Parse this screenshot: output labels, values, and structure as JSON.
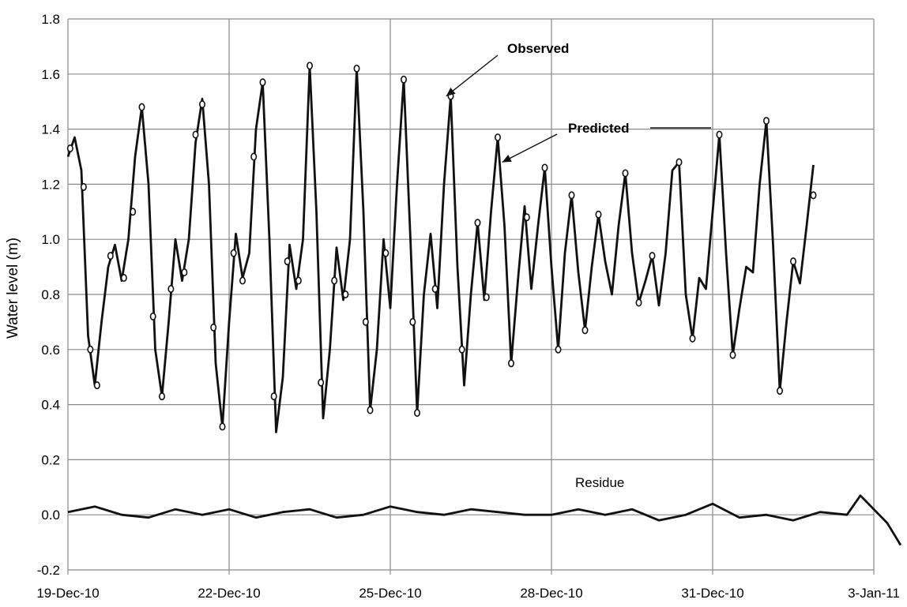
{
  "chart_data": {
    "type": "line",
    "title": "",
    "xlabel": "",
    "ylabel": "Water level (m)",
    "ylim": [
      -0.2,
      1.8
    ],
    "yticks": [
      -0.2,
      0.0,
      0.2,
      0.4,
      0.6,
      0.8,
      1.0,
      1.2,
      1.4,
      1.6,
      1.8
    ],
    "ytick_labels": [
      "-0.2",
      "0.0",
      "0.2",
      "0.4",
      "0.6",
      "0.8",
      "1.0",
      "1.2",
      "1.4",
      "1.6",
      "1.8"
    ],
    "xlim": [
      "2010-12-19",
      "2011-01-03"
    ],
    "xtick_labels": [
      "19-Dec-10",
      "22-Dec-10",
      "25-Dec-10",
      "28-Dec-10",
      "31-Dec-10",
      "3-Jan-11"
    ],
    "grid": true,
    "legend": "none",
    "annotations": [
      {
        "text": "Observed",
        "target_x": "2010-12-26 01:00",
        "target_y": 1.52
      },
      {
        "text": "Predicted",
        "target_x": "2010-12-27 02:00",
        "target_y": 1.28
      },
      {
        "text": "Residue",
        "target_x": "2010-12-29 06:00",
        "target_y": 0.08
      }
    ],
    "series": [
      {
        "name": "Predicted",
        "style": "line",
        "points": [
          [
            "2010-12-19 00:00",
            1.3
          ],
          [
            "2010-12-19 03:00",
            1.37
          ],
          [
            "2010-12-19 06:00",
            1.25
          ],
          [
            "2010-12-19 09:00",
            0.65
          ],
          [
            "2010-12-19 12:00",
            0.47
          ],
          [
            "2010-12-19 15:00",
            0.7
          ],
          [
            "2010-12-19 18:00",
            0.9
          ],
          [
            "2010-12-19 21:00",
            0.98
          ],
          [
            "2010-12-20 00:00",
            0.85
          ],
          [
            "2010-12-20 03:00",
            1.0
          ],
          [
            "2010-12-20 06:00",
            1.3
          ],
          [
            "2010-12-20 09:00",
            1.48
          ],
          [
            "2010-12-20 12:00",
            1.2
          ],
          [
            "2010-12-20 15:00",
            0.6
          ],
          [
            "2010-12-20 18:00",
            0.43
          ],
          [
            "2010-12-20 21:00",
            0.7
          ],
          [
            "2010-12-21 00:00",
            1.0
          ],
          [
            "2010-12-21 03:00",
            0.85
          ],
          [
            "2010-12-21 06:00",
            1.0
          ],
          [
            "2010-12-21 09:00",
            1.35
          ],
          [
            "2010-12-21 12:00",
            1.51
          ],
          [
            "2010-12-21 15:00",
            1.2
          ],
          [
            "2010-12-21 18:00",
            0.55
          ],
          [
            "2010-12-21 21:00",
            0.32
          ],
          [
            "2010-12-22 00:00",
            0.7
          ],
          [
            "2010-12-22 03:00",
            1.02
          ],
          [
            "2010-12-22 06:00",
            0.86
          ],
          [
            "2010-12-22 09:00",
            0.95
          ],
          [
            "2010-12-22 12:00",
            1.4
          ],
          [
            "2010-12-22 15:00",
            1.57
          ],
          [
            "2010-12-22 18:00",
            1.0
          ],
          [
            "2010-12-22 21:00",
            0.3
          ],
          [
            "2010-12-23 00:00",
            0.5
          ],
          [
            "2010-12-23 03:00",
            0.98
          ],
          [
            "2010-12-23 06:00",
            0.82
          ],
          [
            "2010-12-23 09:00",
            1.0
          ],
          [
            "2010-12-23 12:00",
            1.63
          ],
          [
            "2010-12-23 15:00",
            1.1
          ],
          [
            "2010-12-23 18:00",
            0.35
          ],
          [
            "2010-12-23 21:00",
            0.6
          ],
          [
            "2010-12-24 00:00",
            0.97
          ],
          [
            "2010-12-24 03:00",
            0.78
          ],
          [
            "2010-12-24 06:00",
            1.0
          ],
          [
            "2010-12-24 09:00",
            1.62
          ],
          [
            "2010-12-24 12:00",
            1.1
          ],
          [
            "2010-12-24 15:00",
            0.38
          ],
          [
            "2010-12-24 18:00",
            0.6
          ],
          [
            "2010-12-24 21:00",
            1.0
          ],
          [
            "2010-12-25 00:00",
            0.75
          ],
          [
            "2010-12-25 03:00",
            1.2
          ],
          [
            "2010-12-25 06:00",
            1.58
          ],
          [
            "2010-12-25 09:00",
            1.0
          ],
          [
            "2010-12-25 12:00",
            0.37
          ],
          [
            "2010-12-25 15:00",
            0.8
          ],
          [
            "2010-12-25 18:00",
            1.02
          ],
          [
            "2010-12-25 21:00",
            0.75
          ],
          [
            "2010-12-26 00:00",
            1.2
          ],
          [
            "2010-12-26 03:00",
            1.52
          ],
          [
            "2010-12-26 06:00",
            0.9
          ],
          [
            "2010-12-26 09:00",
            0.47
          ],
          [
            "2010-12-26 12:00",
            0.8
          ],
          [
            "2010-12-26 15:00",
            1.06
          ],
          [
            "2010-12-26 18:00",
            0.78
          ],
          [
            "2010-12-26 21:00",
            1.1
          ],
          [
            "2010-12-27 00:00",
            1.37
          ],
          [
            "2010-12-27 03:00",
            1.05
          ],
          [
            "2010-12-27 06:00",
            0.55
          ],
          [
            "2010-12-27 09:00",
            0.85
          ],
          [
            "2010-12-27 12:00",
            1.12
          ],
          [
            "2010-12-27 15:00",
            0.82
          ],
          [
            "2010-12-27 18:00",
            1.05
          ],
          [
            "2010-12-27 21:00",
            1.26
          ],
          [
            "2010-12-28 00:00",
            0.9
          ],
          [
            "2010-12-28 03:00",
            0.6
          ],
          [
            "2010-12-28 06:00",
            0.95
          ],
          [
            "2010-12-28 09:00",
            1.16
          ],
          [
            "2010-12-28 12:00",
            0.88
          ],
          [
            "2010-12-28 15:00",
            0.67
          ],
          [
            "2010-12-28 18:00",
            0.9
          ],
          [
            "2010-12-28 21:00",
            1.09
          ],
          [
            "2010-12-29 00:00",
            0.92
          ],
          [
            "2010-12-29 03:00",
            0.8
          ],
          [
            "2010-12-29 06:00",
            1.05
          ],
          [
            "2010-12-29 09:00",
            1.24
          ],
          [
            "2010-12-29 12:00",
            0.95
          ],
          [
            "2010-12-29 15:00",
            0.77
          ],
          [
            "2010-12-29 18:00",
            0.85
          ],
          [
            "2010-12-29 21:00",
            0.94
          ],
          [
            "2010-12-30 00:00",
            0.76
          ],
          [
            "2010-12-30 03:00",
            0.95
          ],
          [
            "2010-12-30 06:00",
            1.25
          ],
          [
            "2010-12-30 09:00",
            1.28
          ],
          [
            "2010-12-30 12:00",
            0.8
          ],
          [
            "2010-12-30 15:00",
            0.64
          ],
          [
            "2010-12-30 18:00",
            0.86
          ],
          [
            "2010-12-30 21:00",
            0.82
          ],
          [
            "2010-12-31 00:00",
            1.1
          ],
          [
            "2010-12-31 03:00",
            1.38
          ],
          [
            "2010-12-31 06:00",
            0.95
          ],
          [
            "2010-12-31 09:00",
            0.58
          ],
          [
            "2010-12-31 12:00",
            0.75
          ],
          [
            "2010-12-31 15:00",
            0.9
          ],
          [
            "2010-12-31 18:00",
            0.88
          ],
          [
            "2010-12-31 21:00",
            1.2
          ],
          [
            "2011-01-01 00:00",
            1.43
          ],
          [
            "2011-01-01 03:00",
            0.98
          ],
          [
            "2011-01-01 06:00",
            0.45
          ],
          [
            "2011-01-01 09:00",
            0.7
          ],
          [
            "2011-01-01 12:00",
            0.92
          ],
          [
            "2011-01-01 15:00",
            0.84
          ],
          [
            "2011-01-01 18:00",
            1.05
          ],
          [
            "2011-01-01 21:00",
            1.27
          ]
        ]
      },
      {
        "name": "Observed",
        "style": "markers",
        "points": [
          [
            "2010-12-19 01:00",
            1.33
          ],
          [
            "2010-12-19 07:00",
            1.19
          ],
          [
            "2010-12-19 10:00",
            0.6
          ],
          [
            "2010-12-19 13:00",
            0.47
          ],
          [
            "2010-12-19 19:00",
            0.94
          ],
          [
            "2010-12-20 01:00",
            0.86
          ],
          [
            "2010-12-20 05:00",
            1.1
          ],
          [
            "2010-12-20 09:00",
            1.48
          ],
          [
            "2010-12-20 14:00",
            0.72
          ],
          [
            "2010-12-20 18:00",
            0.43
          ],
          [
            "2010-12-20 22:00",
            0.82
          ],
          [
            "2010-12-21 04:00",
            0.88
          ],
          [
            "2010-12-21 09:00",
            1.38
          ],
          [
            "2010-12-21 12:00",
            1.49
          ],
          [
            "2010-12-21 17:00",
            0.68
          ],
          [
            "2010-12-21 21:00",
            0.32
          ],
          [
            "2010-12-22 02:00",
            0.95
          ],
          [
            "2010-12-22 06:00",
            0.85
          ],
          [
            "2010-12-22 11:00",
            1.3
          ],
          [
            "2010-12-22 15:00",
            1.57
          ],
          [
            "2010-12-22 20:00",
            0.43
          ],
          [
            "2010-12-23 02:00",
            0.92
          ],
          [
            "2010-12-23 07:00",
            0.85
          ],
          [
            "2010-12-23 12:00",
            1.63
          ],
          [
            "2010-12-23 17:00",
            0.48
          ],
          [
            "2010-12-23 23:00",
            0.85
          ],
          [
            "2010-12-24 04:00",
            0.8
          ],
          [
            "2010-12-24 09:00",
            1.62
          ],
          [
            "2010-12-24 13:00",
            0.7
          ],
          [
            "2010-12-24 15:00",
            0.38
          ],
          [
            "2010-12-24 22:00",
            0.95
          ],
          [
            "2010-12-25 06:00",
            1.58
          ],
          [
            "2010-12-25 10:00",
            0.7
          ],
          [
            "2010-12-25 12:00",
            0.37
          ],
          [
            "2010-12-25 20:00",
            0.82
          ],
          [
            "2010-12-26 03:00",
            1.52
          ],
          [
            "2010-12-26 08:00",
            0.6
          ],
          [
            "2010-12-26 15:00",
            1.06
          ],
          [
            "2010-12-26 19:00",
            0.79
          ],
          [
            "2010-12-27 00:00",
            1.37
          ],
          [
            "2010-12-27 06:00",
            0.55
          ],
          [
            "2010-12-27 13:00",
            1.08
          ],
          [
            "2010-12-27 21:00",
            1.26
          ],
          [
            "2010-12-28 03:00",
            0.6
          ],
          [
            "2010-12-28 09:00",
            1.16
          ],
          [
            "2010-12-28 15:00",
            0.67
          ],
          [
            "2010-12-28 21:00",
            1.09
          ],
          [
            "2010-12-29 09:00",
            1.24
          ],
          [
            "2010-12-29 15:00",
            0.77
          ],
          [
            "2010-12-29 21:00",
            0.94
          ],
          [
            "2010-12-30 09:00",
            1.28
          ],
          [
            "2010-12-30 15:00",
            0.64
          ],
          [
            "2010-12-31 03:00",
            1.38
          ],
          [
            "2010-12-31 09:00",
            0.58
          ],
          [
            "2011-01-01 00:00",
            1.43
          ],
          [
            "2011-01-01 06:00",
            0.45
          ],
          [
            "2011-01-01 12:00",
            0.92
          ],
          [
            "2011-01-01 21:00",
            1.16
          ]
        ]
      },
      {
        "name": "Residue",
        "style": "line",
        "points": [
          [
            "2010-12-19 00:00",
            0.01
          ],
          [
            "2010-12-19 12:00",
            0.03
          ],
          [
            "2010-12-20 00:00",
            0.0
          ],
          [
            "2010-12-20 12:00",
            -0.01
          ],
          [
            "2010-12-21 00:00",
            0.02
          ],
          [
            "2010-12-21 12:00",
            0.0
          ],
          [
            "2010-12-22 00:00",
            0.02
          ],
          [
            "2010-12-22 12:00",
            -0.01
          ],
          [
            "2010-12-23 00:00",
            0.01
          ],
          [
            "2010-12-23 12:00",
            0.02
          ],
          [
            "2010-12-24 00:00",
            -0.01
          ],
          [
            "2010-12-24 12:00",
            0.0
          ],
          [
            "2010-12-25 00:00",
            0.03
          ],
          [
            "2010-12-25 12:00",
            0.01
          ],
          [
            "2010-12-26 00:00",
            0.0
          ],
          [
            "2010-12-26 12:00",
            0.02
          ],
          [
            "2010-12-27 00:00",
            0.01
          ],
          [
            "2010-12-27 12:00",
            0.0
          ],
          [
            "2010-12-28 00:00",
            0.0
          ],
          [
            "2010-12-28 12:00",
            0.02
          ],
          [
            "2010-12-29 00:00",
            0.0
          ],
          [
            "2010-12-29 12:00",
            0.02
          ],
          [
            "2010-12-30 00:00",
            -0.02
          ],
          [
            "2010-12-30 12:00",
            0.0
          ],
          [
            "2010-12-31 00:00",
            0.04
          ],
          [
            "2010-12-31 12:00",
            -0.01
          ],
          [
            "2011-01-01 00:00",
            0.0
          ],
          [
            "2011-01-01 12:00",
            -0.02
          ],
          [
            "2011-01-02 00:00",
            0.01
          ],
          [
            "2011-01-02 12:00",
            0.0
          ],
          [
            "2011-01-02 18:00",
            0.07
          ],
          [
            "2011-01-03 00:00",
            0.02
          ],
          [
            "2011-01-03 06:00",
            -0.03
          ],
          [
            "2011-01-03 12:00",
            -0.11
          ]
        ]
      }
    ]
  }
}
